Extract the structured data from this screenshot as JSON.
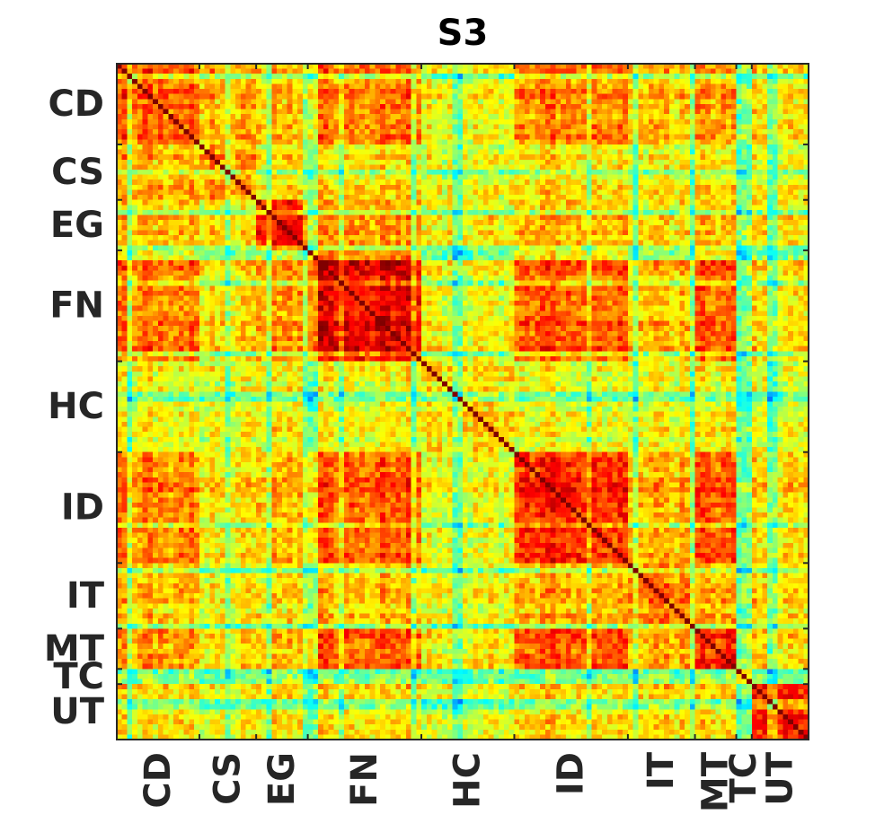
{
  "chart_data": {
    "type": "heatmap",
    "title": "S3",
    "xlabel": "",
    "ylabel": "",
    "categories": [
      "CD",
      "CS",
      "EG",
      "FN",
      "HC",
      "ID",
      "IT",
      "MT",
      "TC",
      "UT"
    ],
    "group_sizes": [
      16,
      11,
      10,
      22,
      18,
      22,
      13,
      8,
      3,
      11
    ],
    "colormap": "jet",
    "value_range": [
      0,
      1
    ],
    "diagonal_value": 1.0,
    "grid": false,
    "colorbar": false,
    "block_mean_similarity": [
      [
        0.78,
        0.7,
        0.68,
        0.76,
        0.62,
        0.76,
        0.68,
        0.72,
        0.5,
        0.66
      ],
      [
        0.7,
        0.72,
        0.64,
        0.66,
        0.6,
        0.66,
        0.62,
        0.64,
        0.48,
        0.62
      ],
      [
        0.68,
        0.64,
        0.84,
        0.72,
        0.62,
        0.7,
        0.64,
        0.68,
        0.5,
        0.64
      ],
      [
        0.76,
        0.66,
        0.72,
        0.9,
        0.62,
        0.8,
        0.68,
        0.78,
        0.5,
        0.66
      ],
      [
        0.62,
        0.6,
        0.62,
        0.62,
        0.64,
        0.62,
        0.6,
        0.62,
        0.46,
        0.6
      ],
      [
        0.76,
        0.66,
        0.7,
        0.8,
        0.62,
        0.86,
        0.7,
        0.8,
        0.5,
        0.68
      ],
      [
        0.68,
        0.62,
        0.64,
        0.68,
        0.6,
        0.7,
        0.74,
        0.7,
        0.48,
        0.66
      ],
      [
        0.72,
        0.64,
        0.68,
        0.78,
        0.62,
        0.8,
        0.7,
        0.82,
        0.5,
        0.66
      ],
      [
        0.5,
        0.48,
        0.5,
        0.5,
        0.46,
        0.5,
        0.48,
        0.5,
        0.6,
        0.5
      ],
      [
        0.66,
        0.62,
        0.64,
        0.66,
        0.6,
        0.68,
        0.66,
        0.66,
        0.5,
        0.86
      ]
    ]
  }
}
